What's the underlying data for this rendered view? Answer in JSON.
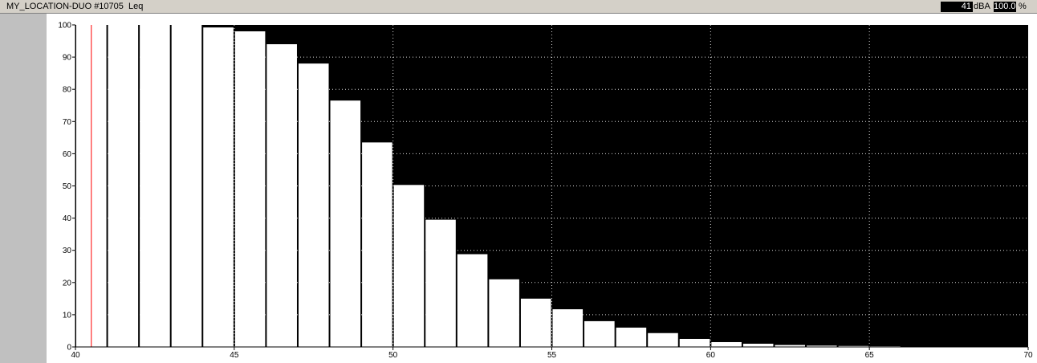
{
  "window": {
    "title": "MY_LOCATION-DUO #10705  Leq",
    "level_value": "41",
    "level_unit": "dBA",
    "percent_value": "100.0",
    "percent_symbol": "%"
  },
  "colors": {
    "plot_background": "#000000",
    "bar_fill": "#ffffff",
    "grid": "#ffffff",
    "cursor": "#ff0000"
  },
  "chart_data": {
    "type": "bar",
    "title": "",
    "xlabel": "",
    "ylabel": "",
    "xlim": [
      40,
      70
    ],
    "ylim": [
      0,
      100
    ],
    "x_ticks": [
      40,
      45,
      50,
      55,
      60,
      65,
      70
    ],
    "y_ticks": [
      0,
      10,
      20,
      30,
      40,
      50,
      60,
      70,
      80,
      90,
      100
    ],
    "grid": true,
    "cursor_x": 40.5,
    "bar_width": 1,
    "x": [
      40,
      41,
      42,
      43,
      44,
      45,
      46,
      47,
      48,
      49,
      50,
      51,
      52,
      53,
      54,
      55,
      56,
      57,
      58,
      59,
      60,
      61,
      62,
      63,
      64,
      65,
      66
    ],
    "values": [
      100,
      100,
      100,
      100,
      99.2,
      98,
      94,
      88,
      76.5,
      63.5,
      50.3,
      39.5,
      28.8,
      21,
      15,
      11.7,
      8,
      6,
      4.3,
      2.5,
      1.5,
      1,
      0.6,
      0.4,
      0.3,
      0.2,
      0.1
    ]
  }
}
